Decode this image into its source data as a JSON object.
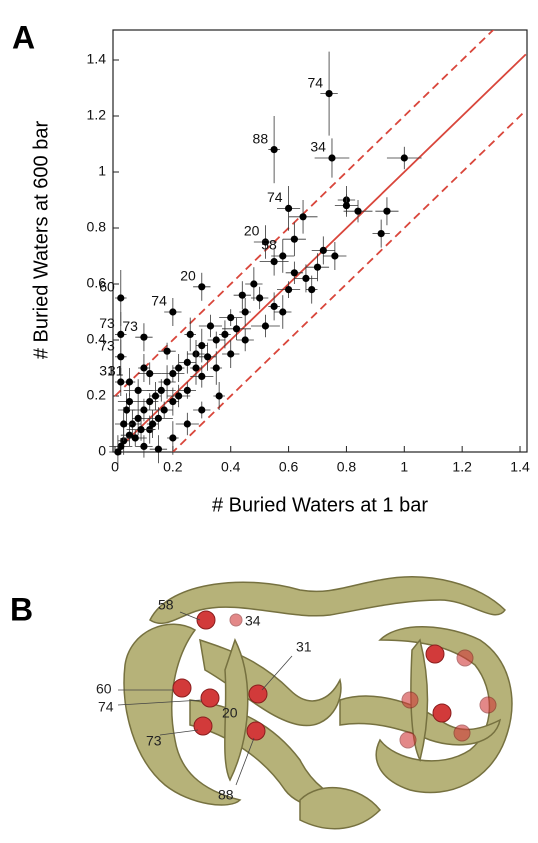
{
  "chart_data": {
    "type": "scatter",
    "x_label": "# Buried Waters at 1 bar",
    "y_label": "# Buried Waters at 600 bar",
    "xlim": [
      0,
      1.42
    ],
    "ylim": [
      0,
      1.5
    ],
    "xticks": [
      0,
      0.2,
      0.4,
      0.6,
      0.8,
      1,
      1.2,
      1.4
    ],
    "yticks": [
      0,
      0.2,
      0.4,
      0.6,
      0.8,
      1,
      1.2,
      1.4
    ],
    "color": "#000000",
    "reference_color": "#d9463b",
    "reference_lines": [
      {
        "offset": 0,
        "dashed": false
      },
      {
        "offset": 0.2,
        "dashed": true
      },
      {
        "offset": -0.2,
        "dashed": true
      }
    ],
    "x": [
      0.74,
      0.55,
      0.75,
      1.0,
      0.6,
      0.65,
      0.8,
      0.8,
      0.84,
      0.94,
      0.92,
      0.52,
      0.58,
      0.62,
      0.55,
      0.72,
      0.76,
      0.7,
      0.66,
      0.3,
      0.2,
      0.02,
      0.02,
      0.1,
      0.02,
      0.02,
      0.05,
      0.5,
      0.45,
      0.4,
      0.48,
      0.42,
      0.38,
      0.35,
      0.33,
      0.3,
      0.28,
      0.25,
      0.22,
      0.2,
      0.18,
      0.16,
      0.14,
      0.12,
      0.1,
      0.08,
      0.06,
      0.05,
      0.03,
      0.02,
      0.01,
      0.15,
      0.2,
      0.25,
      0.3,
      0.35,
      0.4,
      0.45,
      0.55,
      0.6,
      0.58,
      0.52,
      0.36,
      0.3,
      0.25,
      0.2,
      0.15,
      0.1,
      0.12,
      0.07,
      0.04,
      0.08,
      0.1,
      0.18,
      0.12,
      0.26,
      0.44,
      0.62,
      0.68,
      0.05,
      0.03,
      0.09,
      0.13,
      0.17,
      0.22,
      0.28,
      0.32
    ],
    "y": [
      1.28,
      1.08,
      1.05,
      1.05,
      0.87,
      0.84,
      0.9,
      0.88,
      0.86,
      0.86,
      0.78,
      0.75,
      0.7,
      0.76,
      0.68,
      0.72,
      0.7,
      0.66,
      0.62,
      0.59,
      0.5,
      0.55,
      0.42,
      0.41,
      0.34,
      0.25,
      0.25,
      0.55,
      0.5,
      0.48,
      0.6,
      0.44,
      0.42,
      0.4,
      0.45,
      0.38,
      0.35,
      0.32,
      0.3,
      0.28,
      0.25,
      0.22,
      0.2,
      0.18,
      0.15,
      0.12,
      0.1,
      0.06,
      0.04,
      0.02,
      0,
      0.12,
      0.18,
      0.22,
      0.27,
      0.3,
      0.35,
      0.4,
      0.52,
      0.58,
      0.5,
      0.45,
      0.2,
      0.15,
      0.1,
      0.05,
      0.01,
      0.02,
      0.08,
      0.05,
      0.15,
      0.22,
      0.3,
      0.36,
      0.28,
      0.42,
      0.56,
      0.64,
      0.58,
      0.18,
      0.1,
      0.08,
      0.1,
      0.15,
      0.2,
      0.3,
      0.34
    ],
    "xerr": [
      0.03,
      0.02,
      0.06,
      0.06,
      0.04,
      0.05,
      0.03,
      0.04,
      0.05,
      0.04,
      0.03,
      0.04,
      0.04,
      0.04,
      0.05,
      0.04,
      0.04,
      0.04,
      0.04,
      0.03,
      0.03,
      0.02,
      0.02,
      0.03,
      0.02,
      0.02,
      0.02,
      0.03,
      0.02,
      0.04,
      0.03,
      0.05,
      0.02,
      0.03,
      0.04,
      0.02,
      0.03,
      0.03,
      0.02,
      0.04,
      0.03,
      0.05,
      0.02,
      0.03,
      0.04,
      0.02,
      0.03,
      0.03,
      0.02,
      0.04,
      0.03,
      0.05,
      0.02,
      0.03,
      0.04,
      0.02,
      0.03,
      0.03,
      0.02,
      0.04,
      0.03,
      0.05,
      0.02,
      0.03,
      0.04,
      0.02,
      0.03,
      0.03,
      0.02,
      0.04,
      0.03,
      0.05,
      0.02,
      0.03,
      0.04,
      0.02,
      0.03,
      0.03,
      0.02,
      0.04,
      0.03,
      0.05,
      0.02,
      0.03,
      0.04,
      0.02,
      0.03
    ],
    "yerr": [
      0.15,
      0.12,
      0.07,
      0.04,
      0.08,
      0.06,
      0.05,
      0.04,
      0.04,
      0.05,
      0.05,
      0.06,
      0.06,
      0.06,
      0.05,
      0.05,
      0.05,
      0.05,
      0.05,
      0.05,
      0.05,
      0.1,
      0.08,
      0.05,
      0.06,
      0.05,
      0.05,
      0.04,
      0.05,
      0.03,
      0.06,
      0.04,
      0.05,
      0.03,
      0.04,
      0.06,
      0.05,
      0.04,
      0.05,
      0.03,
      0.06,
      0.04,
      0.05,
      0.03,
      0.04,
      0.06,
      0.05,
      0.04,
      0.05,
      0.03,
      0.06,
      0.04,
      0.05,
      0.03,
      0.04,
      0.06,
      0.05,
      0.04,
      0.05,
      0.03,
      0.06,
      0.04,
      0.05,
      0.03,
      0.04,
      0.06,
      0.05,
      0.04,
      0.05,
      0.03,
      0.06,
      0.04,
      0.05,
      0.03,
      0.04,
      0.06,
      0.05,
      0.04,
      0.05,
      0.03,
      0.06,
      0.04,
      0.05,
      0.03,
      0.04,
      0.06,
      0.05
    ],
    "point_labels": [
      "74",
      "88",
      "34",
      null,
      "74",
      null,
      null,
      null,
      null,
      null,
      null,
      "20",
      "58",
      null,
      null,
      null,
      null,
      null,
      null,
      "20",
      "74",
      "60",
      "73",
      "73",
      "73",
      "31",
      "31",
      null,
      null,
      null,
      null,
      null,
      null,
      null,
      null,
      null,
      null,
      null,
      null,
      null,
      null,
      null,
      null,
      null,
      null,
      null,
      null,
      null,
      null,
      null,
      null,
      null,
      null,
      null,
      null,
      null,
      null,
      null,
      null,
      null,
      null,
      null,
      null,
      null,
      null,
      null,
      null,
      null,
      null,
      null,
      null,
      null,
      null,
      null,
      null,
      null,
      null,
      null,
      null,
      null,
      null,
      null,
      null,
      null,
      null,
      null,
      null
    ]
  },
  "panel_labels": [
    "A",
    "B"
  ],
  "structure": {
    "residue_labels": [
      "58",
      "34",
      "31",
      "60",
      "74",
      "20",
      "73",
      "88"
    ]
  }
}
